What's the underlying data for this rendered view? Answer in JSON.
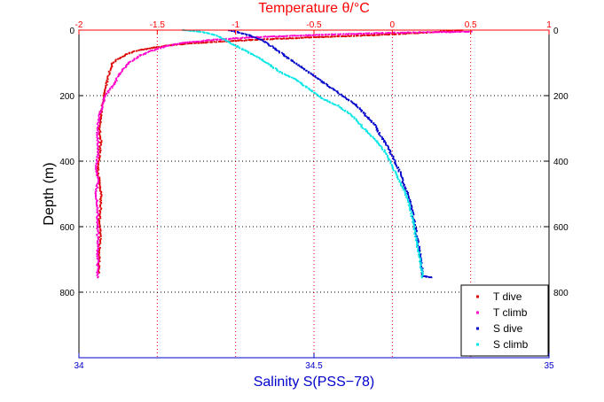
{
  "chart_data": {
    "type": "scatter",
    "top_axis": {
      "label": "Temperature θ/°C",
      "range": [
        -2,
        1
      ],
      "ticks": [
        "-2",
        "-1.5",
        "-1",
        "-0.5",
        "0",
        "0.5",
        "1"
      ],
      "color": "#ff0000"
    },
    "bottom_axis": {
      "label": "Salinity S(PSS−78)",
      "range": [
        34,
        35
      ],
      "ticks": [
        "34",
        "34.5",
        "35"
      ],
      "color": "#0000cc"
    },
    "y_axis": {
      "label": "Depth (m)",
      "range": [
        0,
        1000
      ],
      "inverted": true,
      "ticks": [
        "0",
        "200",
        "400",
        "600",
        "800"
      ]
    },
    "grid": true,
    "legend_position": "bottom-right",
    "series": [
      {
        "name": "T dive",
        "axis": "temperature",
        "color": "#dd0000",
        "points": [
          [
            0.45,
            0
          ],
          [
            0.2,
            8
          ],
          [
            -0.1,
            15
          ],
          [
            -0.5,
            22
          ],
          [
            -0.9,
            30
          ],
          [
            -1.2,
            38
          ],
          [
            -1.4,
            45
          ],
          [
            -1.5,
            52
          ],
          [
            -1.6,
            60
          ],
          [
            -1.68,
            70
          ],
          [
            -1.72,
            80
          ],
          [
            -1.76,
            90
          ],
          [
            -1.79,
            105
          ],
          [
            -1.8,
            120
          ],
          [
            -1.81,
            140
          ],
          [
            -1.82,
            160
          ],
          [
            -1.83,
            180
          ],
          [
            -1.84,
            200
          ],
          [
            -1.85,
            230
          ],
          [
            -1.86,
            260
          ],
          [
            -1.87,
            300
          ],
          [
            -1.86,
            340
          ],
          [
            -1.87,
            380
          ],
          [
            -1.88,
            420
          ],
          [
            -1.87,
            460
          ],
          [
            -1.86,
            500
          ],
          [
            -1.86,
            540
          ],
          [
            -1.87,
            580
          ],
          [
            -1.86,
            620
          ],
          [
            -1.87,
            660
          ],
          [
            -1.87,
            700
          ],
          [
            -1.87,
            740
          ]
        ]
      },
      {
        "name": "T climb",
        "axis": "temperature",
        "color": "#ff00cc",
        "points": [
          [
            0.5,
            5
          ],
          [
            0.0,
            8
          ],
          [
            -0.5,
            15
          ],
          [
            -0.9,
            22
          ],
          [
            -1.15,
            30
          ],
          [
            -1.35,
            40
          ],
          [
            -1.45,
            50
          ],
          [
            -1.55,
            65
          ],
          [
            -1.62,
            80
          ],
          [
            -1.68,
            100
          ],
          [
            -1.72,
            120
          ],
          [
            -1.75,
            140
          ],
          [
            -1.77,
            160
          ],
          [
            -1.8,
            180
          ],
          [
            -1.83,
            200
          ],
          [
            -1.85,
            230
          ],
          [
            -1.87,
            260
          ],
          [
            -1.88,
            300
          ],
          [
            -1.88,
            340
          ],
          [
            -1.88,
            380
          ],
          [
            -1.89,
            420
          ],
          [
            -1.88,
            460
          ],
          [
            -1.89,
            500
          ],
          [
            -1.88,
            540
          ],
          [
            -1.88,
            580
          ],
          [
            -1.88,
            620
          ],
          [
            -1.88,
            660
          ],
          [
            -1.88,
            700
          ],
          [
            -1.88,
            740
          ],
          [
            -1.88,
            755
          ]
        ]
      },
      {
        "name": "S dive",
        "axis": "salinity",
        "color": "#0000cc",
        "points": [
          [
            34.32,
            0
          ],
          [
            34.36,
            15
          ],
          [
            34.39,
            30
          ],
          [
            34.41,
            50
          ],
          [
            34.43,
            70
          ],
          [
            34.45,
            90
          ],
          [
            34.47,
            110
          ],
          [
            34.49,
            130
          ],
          [
            34.51,
            150
          ],
          [
            34.53,
            170
          ],
          [
            34.55,
            190
          ],
          [
            34.57,
            210
          ],
          [
            34.59,
            230
          ],
          [
            34.61,
            260
          ],
          [
            34.63,
            290
          ],
          [
            34.64,
            320
          ],
          [
            34.655,
            350
          ],
          [
            34.665,
            380
          ],
          [
            34.675,
            410
          ],
          [
            34.685,
            440
          ],
          [
            34.69,
            470
          ],
          [
            34.7,
            500
          ],
          [
            34.705,
            530
          ],
          [
            34.71,
            560
          ],
          [
            34.715,
            600
          ],
          [
            34.72,
            640
          ],
          [
            34.725,
            680
          ],
          [
            34.73,
            720
          ],
          [
            34.73,
            750
          ],
          [
            34.75,
            755
          ]
        ]
      },
      {
        "name": "S climb",
        "axis": "salinity",
        "color": "#00e5e5",
        "points": [
          [
            34.22,
            0
          ],
          [
            34.26,
            5
          ],
          [
            34.29,
            15
          ],
          [
            34.31,
            30
          ],
          [
            34.33,
            45
          ],
          [
            34.35,
            60
          ],
          [
            34.37,
            75
          ],
          [
            34.39,
            90
          ],
          [
            34.41,
            110
          ],
          [
            34.43,
            130
          ],
          [
            34.46,
            150
          ],
          [
            34.48,
            170
          ],
          [
            34.5,
            190
          ],
          [
            34.52,
            210
          ],
          [
            34.55,
            230
          ],
          [
            34.58,
            260
          ],
          [
            34.6,
            290
          ],
          [
            34.62,
            320
          ],
          [
            34.64,
            350
          ],
          [
            34.655,
            380
          ],
          [
            34.665,
            410
          ],
          [
            34.675,
            440
          ],
          [
            34.685,
            470
          ],
          [
            34.695,
            500
          ],
          [
            34.705,
            540
          ],
          [
            34.71,
            580
          ],
          [
            34.715,
            620
          ],
          [
            34.72,
            660
          ],
          [
            34.725,
            700
          ],
          [
            34.73,
            740
          ],
          [
            34.73,
            755
          ]
        ]
      }
    ]
  }
}
